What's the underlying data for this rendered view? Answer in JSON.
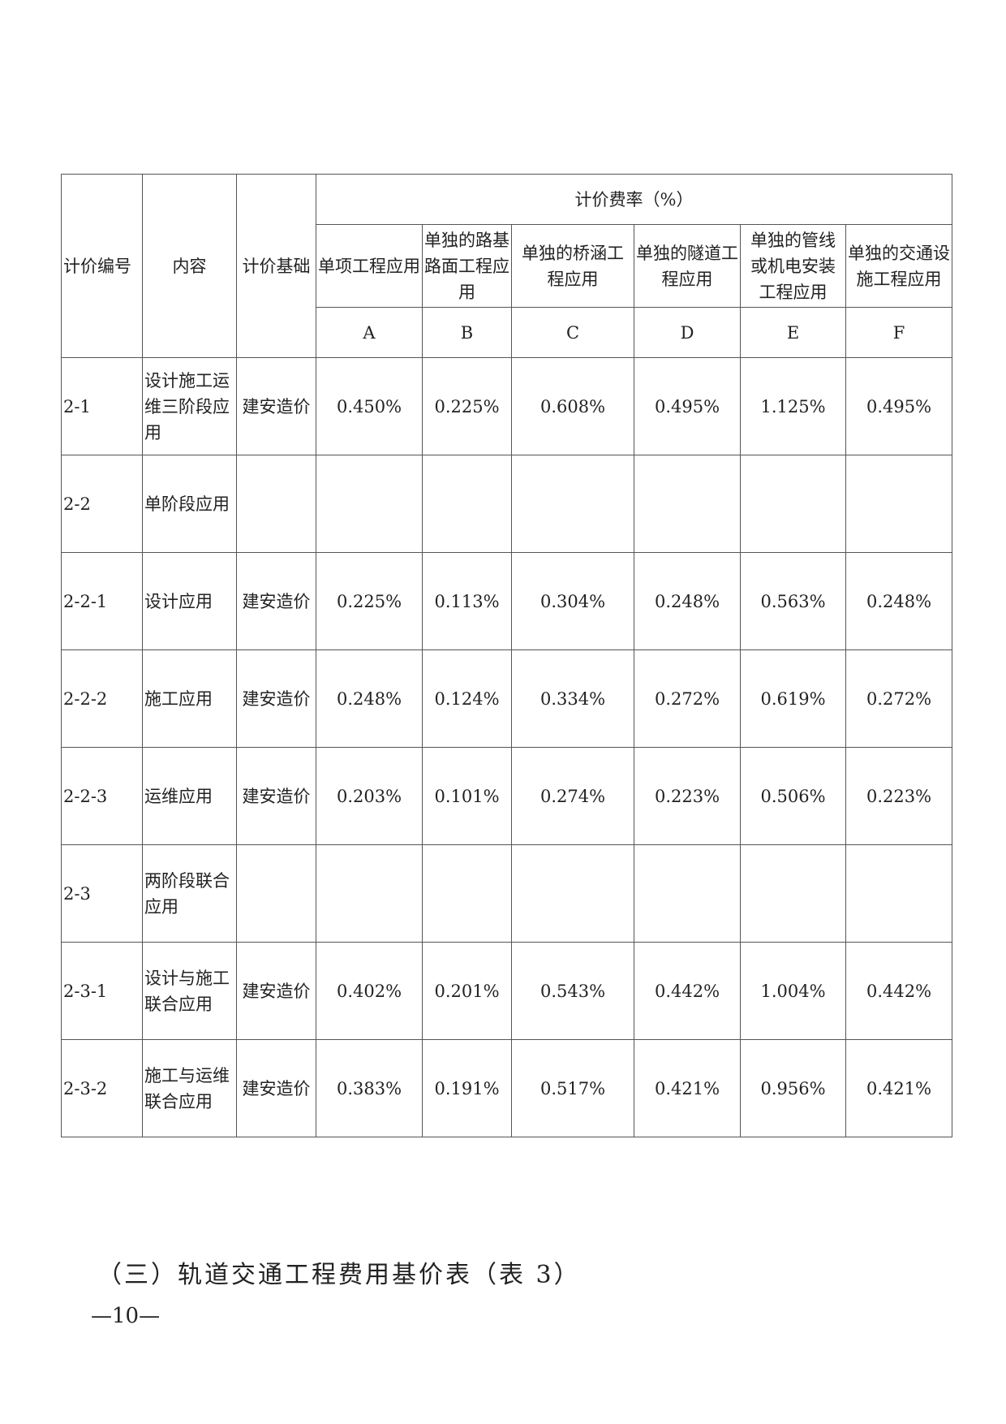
{
  "table": {
    "header": {
      "code": "计价编号",
      "content": "内容",
      "basis": "计价基础",
      "rate_group": "计价费率（%）",
      "columns": [
        {
          "label": "单项工程应用",
          "letter": "A"
        },
        {
          "label": "单独的路基路面工程应用",
          "letter": "B"
        },
        {
          "label": "单独的桥涵工程应用",
          "letter": "C"
        },
        {
          "label": "单独的隧道工程应用",
          "letter": "D"
        },
        {
          "label": "单独的管线或机电安装工程应用",
          "letter": "E"
        },
        {
          "label": "单独的交通设施工程应用",
          "letter": "F"
        }
      ]
    },
    "rows": [
      {
        "code": "2-1",
        "content": "设计施工运维三阶段应用",
        "basis": "建安造价",
        "values": [
          "0.450%",
          "0.225%",
          "0.608%",
          "0.495%",
          "1.125%",
          "0.495%"
        ]
      },
      {
        "code": "2-2",
        "content": "单阶段应用",
        "basis": "",
        "values": [
          "",
          "",
          "",
          "",
          "",
          ""
        ]
      },
      {
        "code": "2-2-1",
        "content": "设计应用",
        "basis": "建安造价",
        "values": [
          "0.225%",
          "0.113%",
          "0.304%",
          "0.248%",
          "0.563%",
          "0.248%"
        ]
      },
      {
        "code": "2-2-2",
        "content": "施工应用",
        "basis": "建安造价",
        "values": [
          "0.248%",
          "0.124%",
          "0.334%",
          "0.272%",
          "0.619%",
          "0.272%"
        ]
      },
      {
        "code": "2-2-3",
        "content": "运维应用",
        "basis": "建安造价",
        "values": [
          "0.203%",
          "0.101%",
          "0.274%",
          "0.223%",
          "0.506%",
          "0.223%"
        ]
      },
      {
        "code": "2-3",
        "content": "两阶段联合应用",
        "basis": "",
        "values": [
          "",
          "",
          "",
          "",
          "",
          ""
        ]
      },
      {
        "code": "2-3-1",
        "content": "设计与施工联合应用",
        "basis": "建安造价",
        "values": [
          "0.402%",
          "0.201%",
          "0.543%",
          "0.442%",
          "1.004%",
          "0.442%"
        ]
      },
      {
        "code": "2-3-2",
        "content": "施工与运维联合应用",
        "basis": "建安造价",
        "values": [
          "0.383%",
          "0.191%",
          "0.517%",
          "0.421%",
          "0.956%",
          "0.421%"
        ]
      }
    ]
  },
  "section_heading": "（三）轨道交通工程费用基价表（表 3）",
  "page_number": "—10—"
}
